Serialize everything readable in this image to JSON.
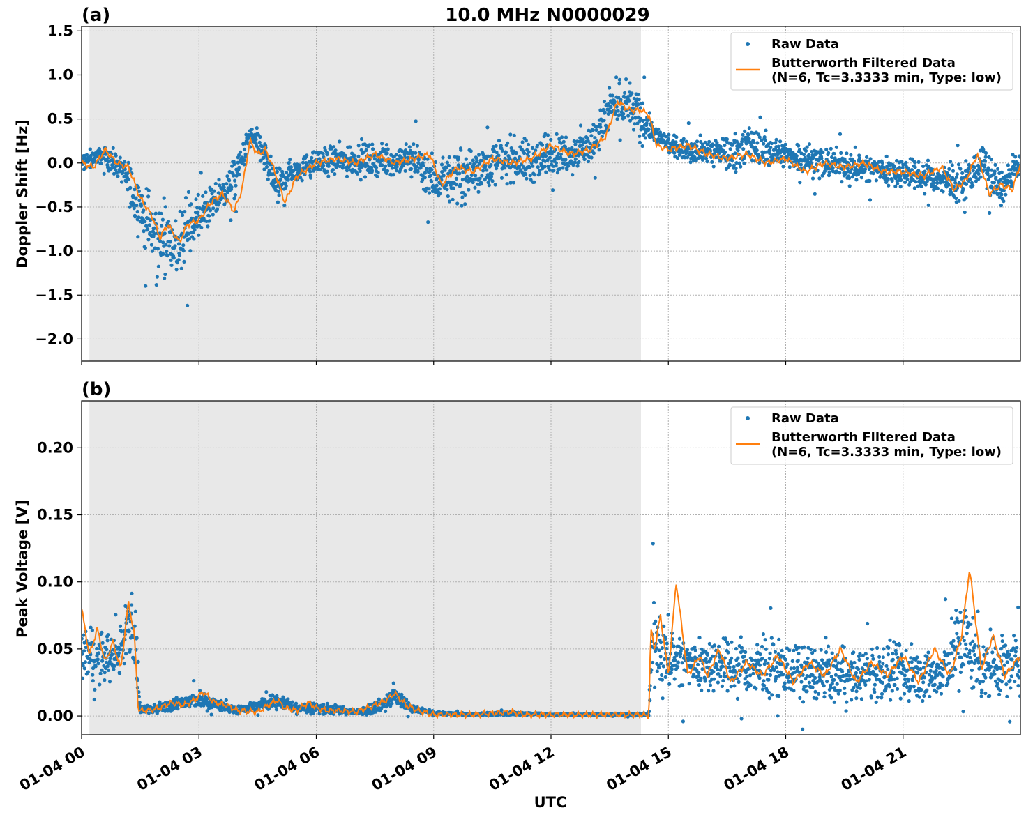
{
  "figure": {
    "title": "10.0 MHz N0000029",
    "xlabel": "UTC"
  },
  "colors": {
    "raw": "#1f77b4",
    "filtered": "#ff7f0e",
    "shade": "#e8e8e8",
    "grid": "#b0b0b0"
  },
  "legend": {
    "raw_label": "Raw Data",
    "filtered_line1": "Butterworth Filtered Data",
    "filtered_line2": "(N=6, Tc=3.3333 min, Type: low)"
  },
  "chart_data": [
    {
      "type": "scatter",
      "panel_label": "(a)",
      "ylabel": "Doppler Shift [Hz]",
      "xlim": [
        0,
        24
      ],
      "ylim": [
        -2.25,
        1.55
      ],
      "xticks": [
        0,
        3,
        6,
        9,
        12,
        15,
        18,
        21
      ],
      "xtick_labels": [
        "01-04 00",
        "01-04 03",
        "01-04 06",
        "01-04 09",
        "01-04 12",
        "01-04 15",
        "01-04 18",
        "01-04 21"
      ],
      "yticks": [
        -2.0,
        -1.5,
        -1.0,
        -0.5,
        0.0,
        0.5,
        1.0,
        1.5
      ],
      "ytick_labels": [
        "−2.0",
        "−1.5",
        "−1.0",
        "−0.5",
        "0.0",
        "0.5",
        "1.0",
        "1.5"
      ],
      "shaded_x": [
        0.2,
        14.3
      ],
      "grid": true,
      "legend_position": "upper right",
      "series": [
        {
          "name": "Raw Data",
          "kind": "points",
          "x": [
            0,
            0.5,
            1,
            1.3,
            1.6,
            1.9,
            2.2,
            2.5,
            2.8,
            3.2,
            3.6,
            4,
            4.3,
            4.6,
            5,
            5.3,
            6,
            7,
            8,
            8.5,
            9,
            9.5,
            10,
            10.5,
            11,
            11.5,
            12,
            12.5,
            13,
            13.5,
            14,
            14.3,
            14.6,
            15,
            15.5,
            16,
            16.5,
            17,
            18,
            19,
            20,
            21,
            22,
            22.5,
            23,
            23.5,
            24
          ],
          "y": [
            0.0,
            0.1,
            -0.05,
            -0.3,
            -0.6,
            -0.9,
            -0.8,
            -1.0,
            -0.7,
            -0.55,
            -0.35,
            -0.1,
            0.3,
            0.15,
            -0.3,
            -0.1,
            0.0,
            0.05,
            0.0,
            0.05,
            -0.2,
            -0.15,
            -0.1,
            0.0,
            0.05,
            0.0,
            0.1,
            0.1,
            0.2,
            0.6,
            0.65,
            0.5,
            0.35,
            0.2,
            0.15,
            0.15,
            0.1,
            0.2,
            0.1,
            0.0,
            -0.05,
            -0.1,
            -0.2,
            -0.25,
            0.0,
            -0.3,
            0.0
          ],
          "spread": [
            0.15,
            0.15,
            0.2,
            0.4,
            0.5,
            0.7,
            0.5,
            0.6,
            0.5,
            0.3,
            0.3,
            0.3,
            0.2,
            0.3,
            0.3,
            0.2,
            0.2,
            0.3,
            0.2,
            0.3,
            0.4,
            0.4,
            0.4,
            0.35,
            0.35,
            0.4,
            0.3,
            0.3,
            0.35,
            0.4,
            0.4,
            0.4,
            0.15,
            0.15,
            0.2,
            0.2,
            0.3,
            0.3,
            0.25,
            0.25,
            0.25,
            0.25,
            0.25,
            0.3,
            0.3,
            0.3,
            0.15
          ]
        },
        {
          "name": "Butterworth Filtered Data (N=6, Tc=3.3333 min, Type: low)",
          "kind": "line",
          "x": [
            0,
            0.3,
            0.6,
            0.9,
            1.2,
            1.5,
            1.8,
            2.0,
            2.2,
            2.5,
            2.7,
            3.0,
            3.3,
            3.6,
            3.9,
            4.1,
            4.3,
            4.5,
            4.7,
            4.9,
            5.2,
            5.5,
            6.0,
            6.5,
            7.0,
            7.5,
            8.0,
            8.5,
            8.9,
            9.2,
            9.6,
            10.0,
            10.5,
            11.0,
            11.5,
            12.0,
            12.5,
            13.0,
            13.4,
            13.7,
            14.0,
            14.3,
            14.5,
            14.7,
            15.0,
            15.5,
            16.0,
            16.5,
            17.0,
            17.5,
            18.0,
            18.5,
            19.0,
            19.5,
            20.0,
            20.5,
            21.0,
            21.5,
            22.0,
            22.3,
            22.6,
            22.9,
            23.2,
            23.5,
            23.8,
            24.0
          ],
          "y": [
            0.0,
            -0.05,
            0.15,
            0.0,
            -0.05,
            -0.4,
            -0.6,
            -0.85,
            -0.7,
            -0.9,
            -0.7,
            -0.65,
            -0.45,
            -0.35,
            -0.55,
            -0.3,
            0.25,
            0.1,
            0.15,
            -0.05,
            -0.45,
            -0.15,
            0.0,
            0.05,
            0.0,
            0.1,
            0.0,
            0.05,
            0.1,
            -0.25,
            -0.05,
            -0.1,
            0.05,
            0.0,
            0.05,
            0.2,
            0.1,
            0.15,
            0.3,
            0.7,
            0.6,
            0.6,
            0.55,
            0.2,
            0.15,
            0.2,
            0.1,
            0.05,
            0.1,
            0.0,
            0.05,
            -0.1,
            0.0,
            -0.05,
            0.0,
            -0.1,
            -0.1,
            -0.15,
            -0.05,
            -0.3,
            -0.2,
            0.1,
            -0.35,
            -0.25,
            -0.3,
            0.0
          ]
        }
      ]
    },
    {
      "type": "scatter",
      "panel_label": "(b)",
      "ylabel": "Peak Voltage [V]",
      "xlim": [
        0,
        24
      ],
      "ylim": [
        -0.014,
        0.235
      ],
      "xticks": [
        0,
        3,
        6,
        9,
        12,
        15,
        18,
        21
      ],
      "xtick_labels": [
        "01-04 00",
        "01-04 03",
        "01-04 06",
        "01-04 09",
        "01-04 12",
        "01-04 15",
        "01-04 18",
        "01-04 21"
      ],
      "yticks": [
        0.0,
        0.05,
        0.1,
        0.15,
        0.2
      ],
      "ytick_labels": [
        "0.00",
        "0.05",
        "0.10",
        "0.15",
        "0.20"
      ],
      "shaded_x": [
        0.2,
        14.3
      ],
      "grid": true,
      "legend_position": "upper right",
      "series": [
        {
          "name": "Raw Data",
          "kind": "points",
          "x": [
            0,
            0.3,
            0.6,
            0.9,
            1.2,
            1.35,
            1.5,
            2.0,
            2.5,
            3.0,
            3.5,
            4.0,
            5.0,
            5.5,
            6.0,
            7.0,
            7.5,
            8.0,
            8.5,
            9.0,
            10.0,
            11.0,
            12.0,
            13.0,
            14.0,
            14.5,
            14.6,
            14.8,
            15.0,
            15.5,
            16.0,
            17.0,
            18.0,
            19.0,
            20.0,
            21.0,
            22.0,
            22.5,
            23.0,
            24.0
          ],
          "y": [
            0.05,
            0.04,
            0.045,
            0.04,
            0.07,
            0.06,
            0.004,
            0.006,
            0.01,
            0.012,
            0.008,
            0.004,
            0.012,
            0.006,
            0.006,
            0.003,
            0.006,
            0.015,
            0.005,
            0.002,
            0.001,
            0.002,
            0.001,
            0.001,
            0.001,
            0.001,
            0.06,
            0.05,
            0.045,
            0.04,
            0.04,
            0.035,
            0.035,
            0.03,
            0.03,
            0.032,
            0.03,
            0.06,
            0.035,
            0.04
          ],
          "spread": [
            0.03,
            0.03,
            0.03,
            0.025,
            0.03,
            0.05,
            0.003,
            0.006,
            0.008,
            0.01,
            0.006,
            0.004,
            0.008,
            0.005,
            0.006,
            0.003,
            0.006,
            0.012,
            0.004,
            0.002,
            0.001,
            0.002,
            0.001,
            0.001,
            0.001,
            0.002,
            0.05,
            0.04,
            0.035,
            0.03,
            0.03,
            0.03,
            0.03,
            0.028,
            0.028,
            0.03,
            0.03,
            0.05,
            0.035,
            0.035
          ]
        },
        {
          "name": "Butterworth Filtered Data (N=6, Tc=3.3333 min, Type: low)",
          "kind": "line",
          "x": [
            0,
            0.2,
            0.4,
            0.6,
            0.8,
            1.0,
            1.2,
            1.35,
            1.45,
            1.7,
            2.0,
            2.3,
            2.6,
            2.9,
            3.1,
            3.4,
            3.7,
            4.0,
            4.5,
            5.0,
            5.2,
            5.5,
            5.8,
            6.0,
            6.3,
            6.6,
            7.0,
            7.5,
            7.8,
            8.0,
            8.3,
            8.6,
            9.0,
            10.0,
            11.0,
            11.3,
            12.0,
            13.0,
            13.5,
            14.0,
            14.3,
            14.5,
            14.55,
            14.65,
            14.8,
            15.0,
            15.2,
            15.5,
            15.8,
            16.0,
            16.3,
            16.6,
            17.0,
            17.4,
            17.8,
            18.2,
            18.6,
            19.0,
            19.4,
            19.8,
            20.2,
            20.6,
            21.0,
            21.4,
            21.8,
            22.2,
            22.5,
            22.7,
            23.0,
            23.3,
            23.6,
            24.0
          ],
          "y": [
            0.08,
            0.045,
            0.065,
            0.04,
            0.055,
            0.035,
            0.085,
            0.06,
            0.004,
            0.004,
            0.006,
            0.01,
            0.008,
            0.012,
            0.018,
            0.01,
            0.008,
            0.004,
            0.003,
            0.012,
            0.006,
            0.004,
            0.01,
            0.006,
            0.004,
            0.004,
            0.003,
            0.008,
            0.012,
            0.017,
            0.008,
            0.004,
            0.001,
            0.001,
            0.003,
            0.001,
            0.001,
            0.001,
            0.001,
            0.001,
            0.001,
            0.0,
            0.065,
            0.05,
            0.075,
            0.03,
            0.1,
            0.03,
            0.045,
            0.03,
            0.05,
            0.025,
            0.04,
            0.03,
            0.045,
            0.025,
            0.04,
            0.03,
            0.05,
            0.025,
            0.04,
            0.03,
            0.045,
            0.025,
            0.05,
            0.03,
            0.06,
            0.11,
            0.035,
            0.06,
            0.03,
            0.045
          ]
        }
      ]
    }
  ]
}
